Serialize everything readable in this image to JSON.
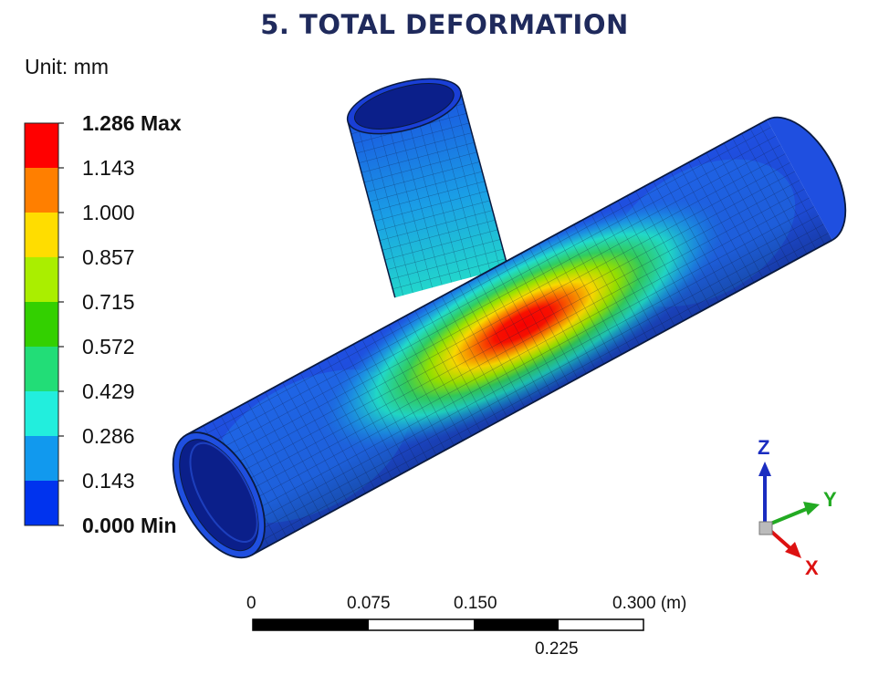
{
  "title": "5. TOTAL DEFORMATION",
  "unit_label": "Unit: mm",
  "legend": {
    "levels": [
      {
        "label": "1.286 Max",
        "bold": true
      },
      {
        "label": "1.143"
      },
      {
        "label": "1.000"
      },
      {
        "label": "0.857"
      },
      {
        "label": "0.715"
      },
      {
        "label": "0.572"
      },
      {
        "label": "0.429"
      },
      {
        "label": "0.286"
      },
      {
        "label": "0.143"
      },
      {
        "label": "0.000 Min",
        "bold": true
      }
    ],
    "band_colors": [
      "#ff0000",
      "#ff7f00",
      "#ffdd00",
      "#aaee00",
      "#33d000",
      "#22dd77",
      "#22eedd",
      "#1199ee",
      "#0033ee"
    ]
  },
  "triad": {
    "z": "Z",
    "y": "Y",
    "x": "X",
    "z_color": "#1a2cc0",
    "y_color": "#22aa22",
    "x_color": "#dd1111"
  },
  "scale_bar": {
    "top_labels": [
      "0",
      "0.075",
      "0.150",
      "0.300 (m)"
    ],
    "bottom_label": "0.225"
  }
}
